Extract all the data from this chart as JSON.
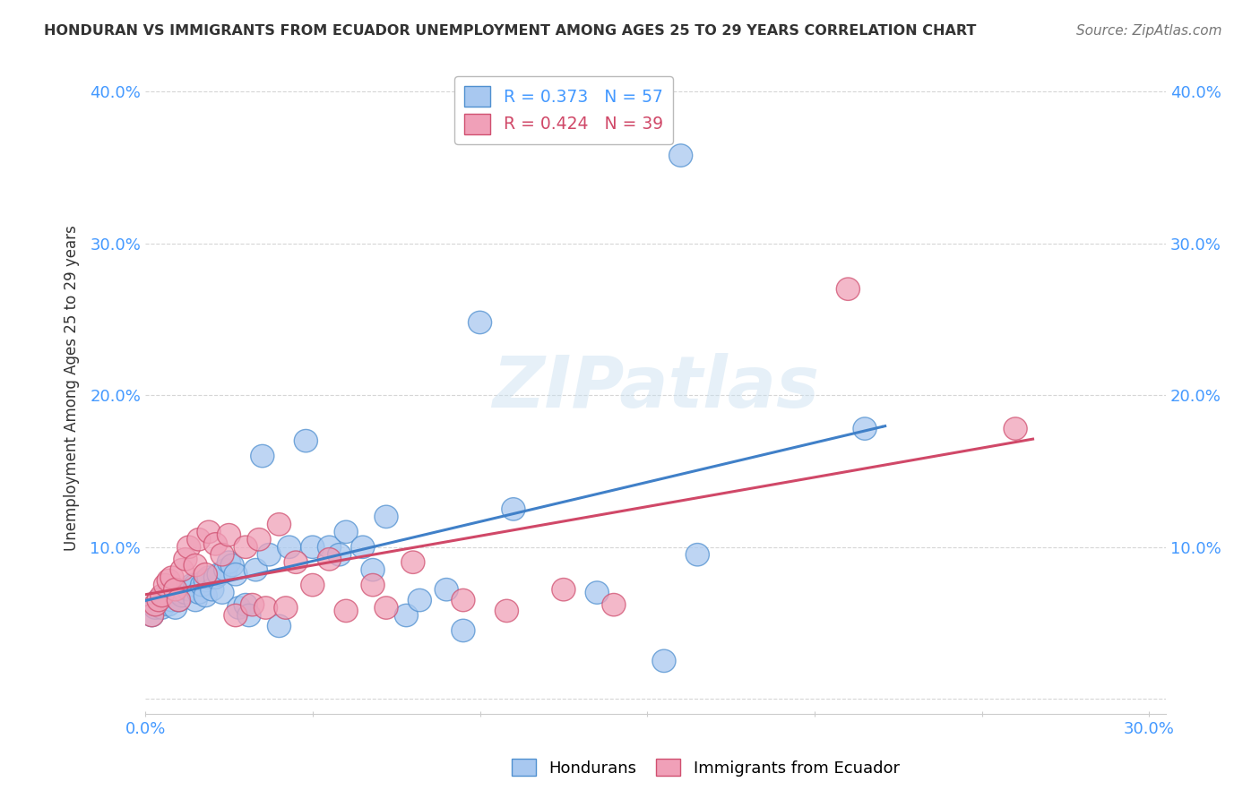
{
  "title": "HONDURAN VS IMMIGRANTS FROM ECUADOR UNEMPLOYMENT AMONG AGES 25 TO 29 YEARS CORRELATION CHART",
  "source": "Source: ZipAtlas.com",
  "ylabel": "Unemployment Among Ages 25 to 29 years",
  "xlim": [
    0.0,
    0.305
  ],
  "ylim": [
    -0.01,
    0.42
  ],
  "xtick_positions": [
    0.0,
    0.05,
    0.1,
    0.15,
    0.2,
    0.25,
    0.3
  ],
  "xtick_labels": [
    "0.0%",
    "",
    "",
    "",
    "",
    "",
    "30.0%"
  ],
  "ytick_positions": [
    0.0,
    0.1,
    0.2,
    0.3,
    0.4
  ],
  "ytick_labels": [
    "",
    "10.0%",
    "20.0%",
    "30.0%",
    "40.0%"
  ],
  "legend1_r": "0.373",
  "legend1_n": "57",
  "legend2_r": "0.424",
  "legend2_n": "39",
  "blue_fill": "#A8C8F0",
  "blue_edge": "#5090D0",
  "pink_fill": "#F0A0B8",
  "pink_edge": "#D05070",
  "blue_line": "#4080C8",
  "pink_line": "#D04868",
  "watermark": "ZIPatlas",
  "honduran_x": [
    0.002,
    0.003,
    0.004,
    0.005,
    0.006,
    0.007,
    0.007,
    0.008,
    0.009,
    0.01,
    0.01,
    0.011,
    0.012,
    0.013,
    0.014,
    0.015,
    0.015,
    0.016,
    0.017,
    0.018,
    0.018,
    0.019,
    0.02,
    0.021,
    0.022,
    0.023,
    0.024,
    0.025,
    0.026,
    0.027,
    0.028,
    0.03,
    0.031,
    0.033,
    0.035,
    0.037,
    0.04,
    0.043,
    0.048,
    0.05,
    0.055,
    0.058,
    0.06,
    0.065,
    0.068,
    0.072,
    0.078,
    0.082,
    0.09,
    0.095,
    0.1,
    0.11,
    0.135,
    0.155,
    0.165,
    0.215,
    0.16
  ],
  "honduran_y": [
    0.055,
    0.06,
    0.065,
    0.06,
    0.068,
    0.062,
    0.068,
    0.065,
    0.06,
    0.065,
    0.07,
    0.068,
    0.07,
    0.072,
    0.075,
    0.075,
    0.065,
    0.07,
    0.075,
    0.078,
    0.068,
    0.08,
    0.072,
    0.08,
    0.082,
    0.07,
    0.085,
    0.09,
    0.088,
    0.082,
    0.06,
    0.062,
    0.055,
    0.085,
    0.16,
    0.095,
    0.048,
    0.1,
    0.17,
    0.1,
    0.1,
    0.095,
    0.11,
    0.1,
    0.085,
    0.12,
    0.055,
    0.065,
    0.072,
    0.045,
    0.248,
    0.125,
    0.07,
    0.025,
    0.095,
    0.178,
    0.358
  ],
  "ecuador_x": [
    0.002,
    0.003,
    0.004,
    0.005,
    0.006,
    0.007,
    0.008,
    0.009,
    0.01,
    0.011,
    0.012,
    0.013,
    0.015,
    0.016,
    0.018,
    0.019,
    0.021,
    0.023,
    0.025,
    0.027,
    0.03,
    0.032,
    0.034,
    0.036,
    0.04,
    0.042,
    0.045,
    0.05,
    0.055,
    0.06,
    0.068,
    0.072,
    0.08,
    0.095,
    0.108,
    0.125,
    0.14,
    0.21,
    0.26
  ],
  "ecuador_y": [
    0.055,
    0.062,
    0.065,
    0.068,
    0.075,
    0.078,
    0.08,
    0.072,
    0.065,
    0.085,
    0.092,
    0.1,
    0.088,
    0.105,
    0.082,
    0.11,
    0.102,
    0.095,
    0.108,
    0.055,
    0.1,
    0.062,
    0.105,
    0.06,
    0.115,
    0.06,
    0.09,
    0.075,
    0.092,
    0.058,
    0.075,
    0.06,
    0.09,
    0.065,
    0.058,
    0.072,
    0.062,
    0.27,
    0.178
  ]
}
